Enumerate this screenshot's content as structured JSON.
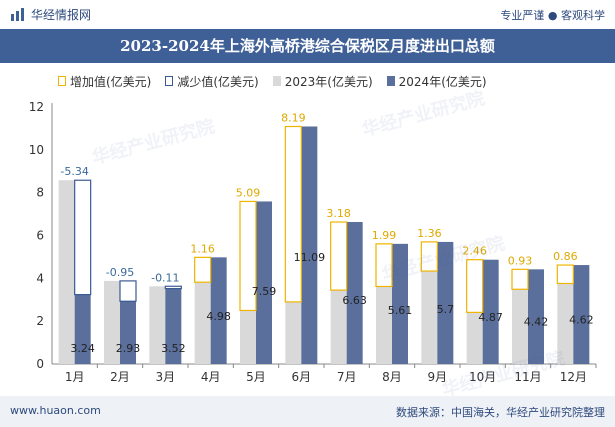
{
  "header": {
    "brand": "华经情报网",
    "slogan": "专业严谨 ● 客观科学"
  },
  "footer": {
    "website": "www.huaon.com",
    "source": "数据来源：中国海关，华经产业研究院整理"
  },
  "watermark": {
    "text": "华经产业研究院",
    "sub": "www.huaon.com"
  },
  "colors": {
    "title_bg": "#3f5f97",
    "bar_2023": "#d9d9d9",
    "bar_2024": "#5b6f9c",
    "increase_border": "#f0b400",
    "decrease_border": "#3a5a94",
    "increase_label": "#e0a800",
    "decrease_label": "#3a6a9a"
  },
  "chart_data": {
    "type": "bar",
    "title": "2023-2024年上海外高桥港综合保税区月度进出口总额",
    "categories": [
      "1月",
      "2月",
      "3月",
      "4月",
      "5月",
      "6月",
      "7月",
      "8月",
      "9月",
      "10月",
      "11月",
      "12月"
    ],
    "series": [
      {
        "name": "2023年(亿美元)",
        "values": [
          8.58,
          3.88,
          3.63,
          3.82,
          2.5,
          2.9,
          3.45,
          3.62,
          4.34,
          2.41,
          3.49,
          3.76
        ]
      },
      {
        "name": "2024年(亿美元)",
        "values": [
          3.24,
          2.93,
          3.52,
          4.98,
          7.59,
          11.09,
          6.63,
          5.61,
          5.7,
          4.87,
          4.42,
          4.62
        ]
      }
    ],
    "change": {
      "increase_name": "增加值(亿美元)",
      "decrease_name": "减少值(亿美元)",
      "values": [
        -5.34,
        -0.95,
        -0.11,
        1.16,
        5.09,
        8.19,
        3.18,
        1.99,
        1.36,
        2.46,
        0.93,
        0.86
      ],
      "labels": [
        "-5.34",
        "-0.95",
        "-0.11",
        "1.16",
        "5.09",
        "8.19",
        "3.18",
        "1.99",
        "1.36",
        "2.46",
        "0.93",
        "0.86"
      ]
    },
    "value_labels_2024": [
      "3.24",
      "2.93",
      "3.52",
      "4.98",
      "7.59",
      "11.09",
      "6.63",
      "5.61",
      "5.7",
      "4.87",
      "4.42",
      "4.62"
    ],
    "y_ticks": [
      "0",
      "2",
      "4",
      "6",
      "8",
      "10",
      "12"
    ],
    "ylim": [
      0,
      12
    ],
    "legend_position": "top-left",
    "grid": false
  }
}
